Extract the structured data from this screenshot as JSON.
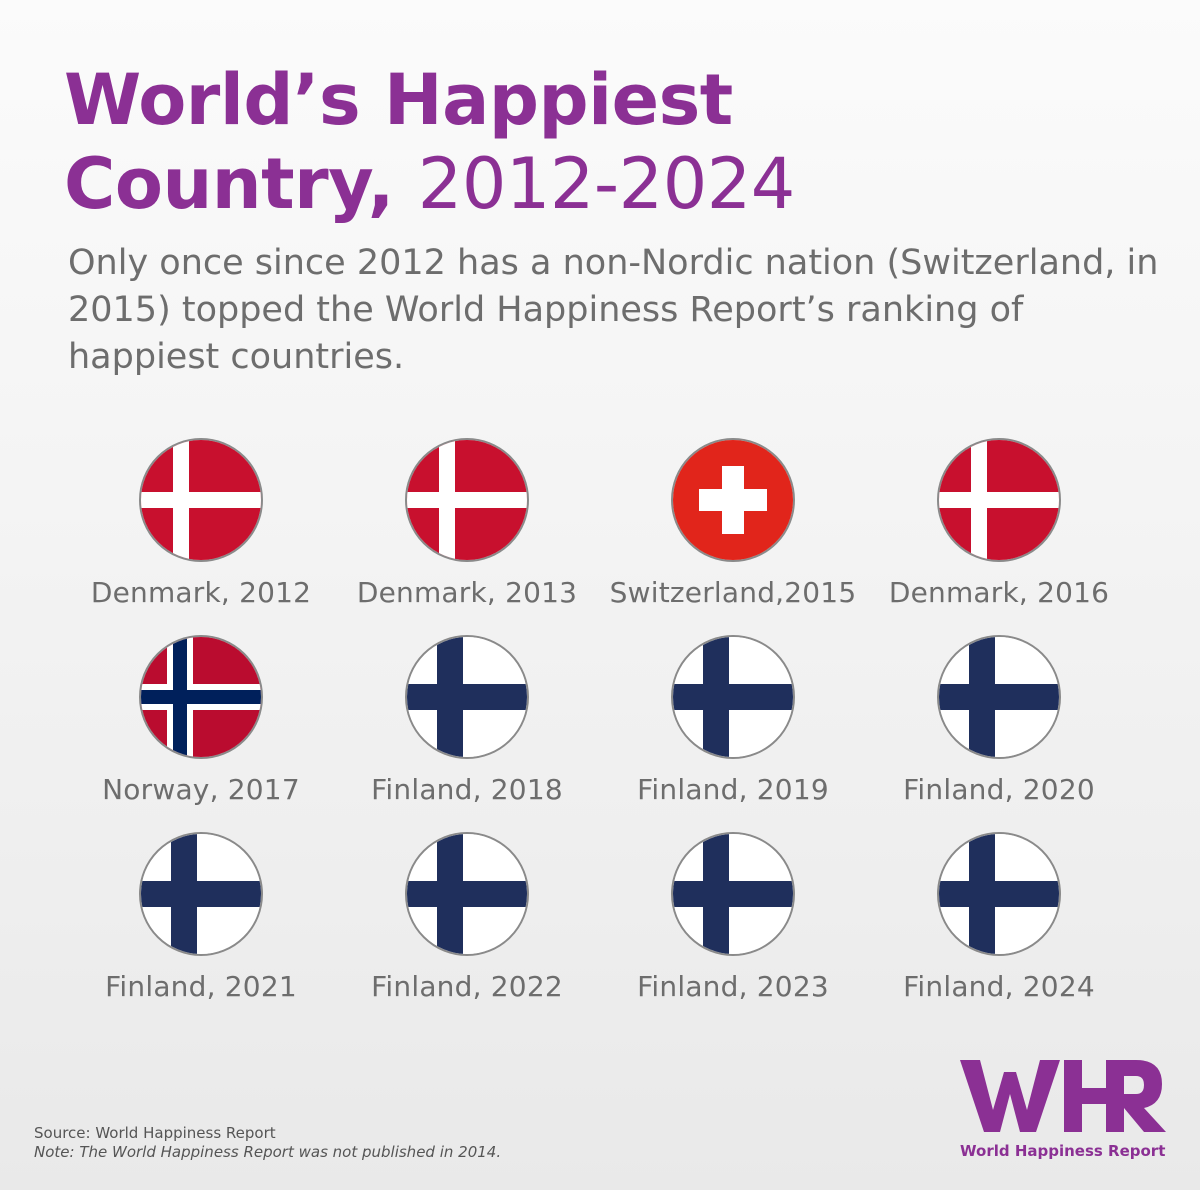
{
  "title": {
    "line1": "World’s Happiest",
    "line2_bold": "Country,",
    "line2_light": "2012-2024"
  },
  "subtitle": "Only once since 2012 has a non-Nordic nation (Switzerland, in 2015) topped the World Happiness Report’s ranking of happiest countries.",
  "colors": {
    "title": "#8b3094",
    "text": "#6d6d6d",
    "denmark_red": "#c8102e",
    "swiss_red": "#e1251b",
    "norway_red": "#ba0c2f",
    "norway_blue": "#00205b",
    "finland_blue": "#1f2f5c"
  },
  "entries": [
    {
      "label": "Denmark, 2012",
      "flag": "denmark-flag-icon"
    },
    {
      "label": "Denmark, 2013",
      "flag": "denmark-flag-icon"
    },
    {
      "label": "Switzerland,2015",
      "flag": "switzerland-flag-icon"
    },
    {
      "label": "Denmark, 2016",
      "flag": "denmark-flag-icon"
    },
    {
      "label": "Norway, 2017",
      "flag": "norway-flag-icon"
    },
    {
      "label": "Finland, 2018",
      "flag": "finland-flag-icon"
    },
    {
      "label": "Finland, 2019",
      "flag": "finland-flag-icon"
    },
    {
      "label": "Finland, 2020",
      "flag": "finland-flag-icon"
    },
    {
      "label": "Finland, 2021",
      "flag": "finland-flag-icon"
    },
    {
      "label": "Finland, 2022",
      "flag": "finland-flag-icon"
    },
    {
      "label": "Finland, 2023",
      "flag": "finland-flag-icon"
    },
    {
      "label": "Finland, 2024",
      "flag": "finland-flag-icon"
    }
  ],
  "footer": {
    "source": "Source: World Happiness Report",
    "note": "Note: The World Happiness Report was not published in 2014."
  },
  "logo": {
    "mark": "WHR",
    "text": "World Happiness Report"
  }
}
